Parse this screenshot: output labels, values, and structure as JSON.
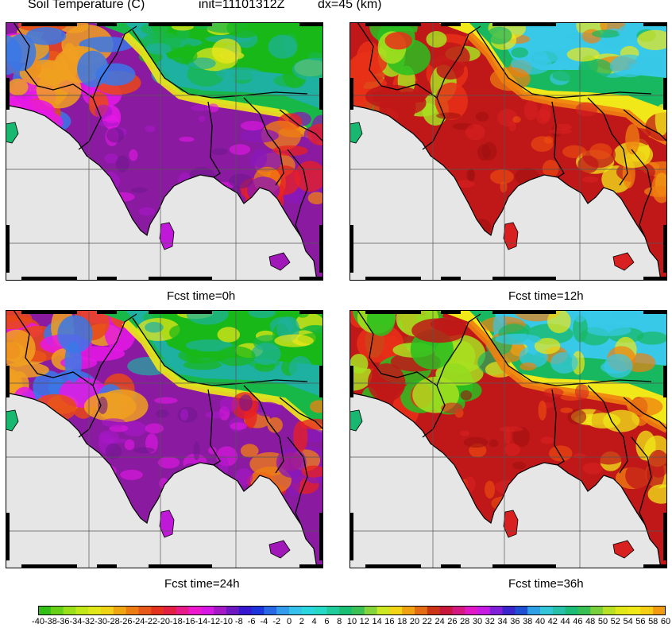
{
  "header": {
    "variable": "Soil Temperature (C)",
    "init": "init=11101312Z",
    "dx": "dx=45 (km)"
  },
  "panels": [
    {
      "id": "p0",
      "caption": "Fcst time=0h",
      "regime": "cold"
    },
    {
      "id": "p12",
      "caption": "Fcst time=12h",
      "regime": "warm"
    },
    {
      "id": "p24",
      "caption": "Fcst time=24h",
      "regime": "cold"
    },
    {
      "id": "p36",
      "caption": "Fcst time=36h",
      "regime": "warm"
    }
  ],
  "colorbar": {
    "min": -40,
    "max": 60,
    "step": 2,
    "labels": [
      "-40",
      "-38",
      "-36",
      "-34",
      "-32",
      "-30",
      "-28",
      "-26",
      "-24",
      "-22",
      "-20",
      "-18",
      "-16",
      "-14",
      "-12",
      "-10",
      "-8",
      "-6",
      "-4",
      "-2",
      "0",
      "2",
      "4",
      "6",
      "8",
      "10",
      "12",
      "14",
      "16",
      "18",
      "20",
      "22",
      "24",
      "26",
      "28",
      "30",
      "32",
      "34",
      "36",
      "38",
      "40",
      "42",
      "44",
      "46",
      "48",
      "50",
      "52",
      "54",
      "56",
      "58",
      "60"
    ]
  },
  "colors": {
    "ocean": "#e6e6e6",
    "cold_plain": "#8a1aa0",
    "hot_plain": "#c01818",
    "tibet_cold": "#2eb84a",
    "tibet_hot": "#38c8e8",
    "border": "#000000"
  }
}
